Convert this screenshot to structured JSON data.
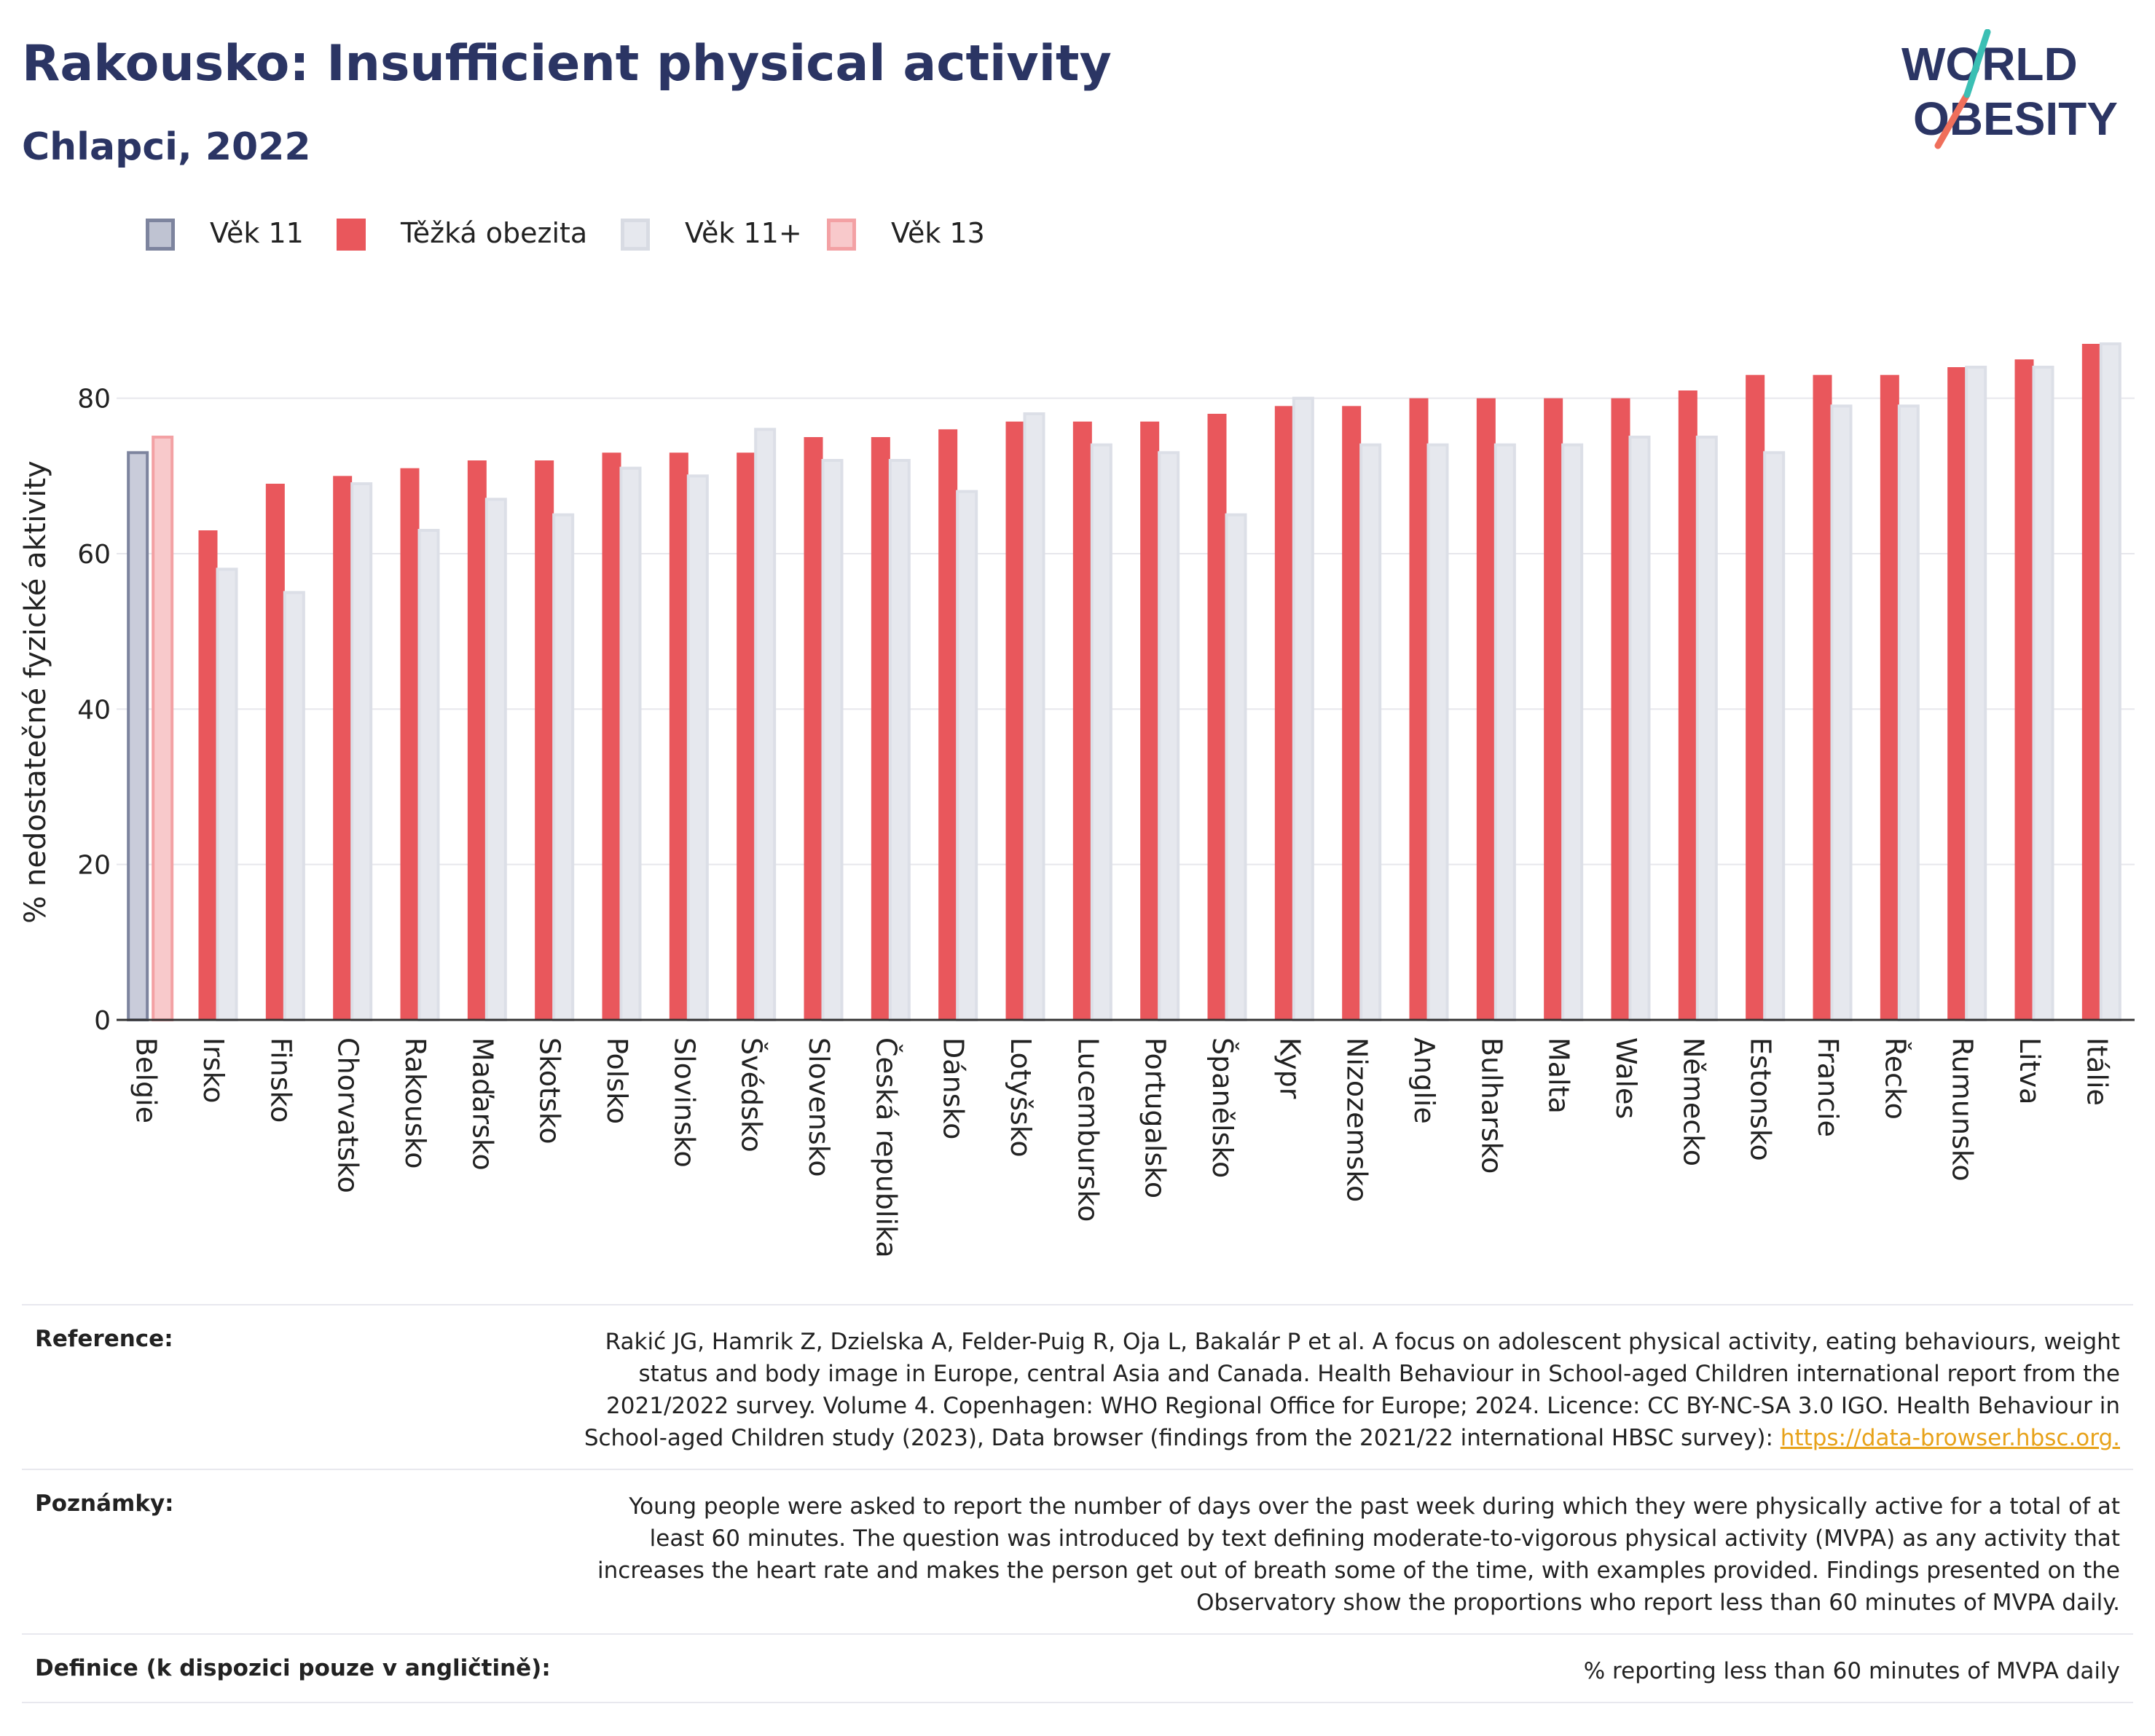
{
  "header": {
    "title": "Rakousko: Insufficient physical activity",
    "subtitle": "Chlapci, 2022"
  },
  "logo": {
    "line1": "WORLD",
    "line2": "OBESITY",
    "accent_colors": [
      "#3bbfb4",
      "#ef6f5b"
    ]
  },
  "legend": [
    {
      "label": "Věk 11",
      "color": "#bfc3d2",
      "border": "#7d849e"
    },
    {
      "label": "Těžká obezita",
      "color": "#e9575c",
      "border": "#e9575c"
    },
    {
      "label": "Věk 11+",
      "color": "#e6e8ee",
      "border": "#d8dbe3"
    },
    {
      "label": "Věk 13",
      "color": "#f8c9cb",
      "border": "#f3a1a4"
    }
  ],
  "colors": {
    "primary_red": "#e9575c",
    "light_grey": "#e6e8ee",
    "grey_blue": "#c9ccda",
    "pink": "#f8c9cb",
    "axis": "#333333",
    "grid": "#e7e7ec"
  },
  "chart_data": {
    "type": "bar",
    "ylabel": "% nedostatečné fyzické aktivity",
    "ylim": [
      0,
      90
    ],
    "yticks": [
      0,
      20,
      40,
      60,
      80
    ],
    "grid": true,
    "categories": [
      "Belgie",
      "Irsko",
      "Finsko",
      "Chorvatsko",
      "Rakousko",
      "Maďarsko",
      "Skotsko",
      "Polsko",
      "Slovinsko",
      "Švédsko",
      "Slovensko",
      "Česká republika",
      "Dánsko",
      "Lotyšsko",
      "Lucembursko",
      "Portugalsko",
      "Španělsko",
      "Kypr",
      "Nizozemsko",
      "Anglie",
      "Bulharsko",
      "Malta",
      "Wales",
      "Německo",
      "Estonsko",
      "Francie",
      "Řecko",
      "Rumunsko",
      "Litva",
      "Itálie"
    ],
    "series": [
      {
        "name": "Těžká obezita",
        "values": [
          null,
          63,
          69,
          70,
          71,
          72,
          72,
          73,
          73,
          73,
          75,
          75,
          76,
          77,
          77,
          77,
          78,
          79,
          79,
          80,
          80,
          80,
          80,
          81,
          83,
          83,
          83,
          84,
          85,
          87
        ]
      },
      {
        "name": "Věk 11+",
        "values": [
          null,
          58,
          55,
          69,
          63,
          67,
          65,
          71,
          70,
          76,
          72,
          72,
          68,
          78,
          74,
          73,
          65,
          80,
          74,
          74,
          74,
          74,
          75,
          75,
          73,
          79,
          79,
          84,
          84,
          87
        ]
      },
      {
        "name": "Věk 11",
        "values": [
          73,
          null,
          null,
          null,
          null,
          null,
          null,
          null,
          null,
          null,
          null,
          null,
          null,
          null,
          null,
          null,
          null,
          null,
          null,
          null,
          null,
          null,
          null,
          null,
          null,
          null,
          null,
          null,
          null,
          null
        ]
      },
      {
        "name": "Věk 13",
        "values": [
          75,
          null,
          null,
          null,
          null,
          null,
          null,
          null,
          null,
          null,
          null,
          null,
          null,
          null,
          null,
          null,
          null,
          null,
          null,
          null,
          null,
          null,
          null,
          null,
          null,
          null,
          null,
          null,
          null,
          null
        ]
      }
    ]
  },
  "references": {
    "reference_label": "Reference:",
    "reference_text": "Rakić JG, Hamrik Z, Dzielska A, Felder-Puig R, Oja L, Bakalár P et al. A focus on adolescent physical activity, eating behaviours, weight status and body image in Europe, central Asia and Canada. Health Behaviour in School-aged Children international report from the 2021/2022 survey. Volume 4. Copenhagen: WHO Regional Office for Europe; 2024. Licence: CC BY-NC-SA 3.0 IGO. Health Behaviour in School-aged Children study (2023), Data browser (findings from the 2021/22 international HBSC survey): ",
    "reference_link": "https://data-browser.hbsc.org.",
    "notes_label": "Poznámky:",
    "notes_text": "Young people were asked to report the number of days over the past week during which they were physically active for a total of at least 60 minutes. The question was introduced by text defining moderate-to-vigorous physical activity (MVPA) as any activity that increases the heart rate and makes the person get out of breath some of the time, with examples provided. Findings presented on the Observatory show the proportions who report less than 60 minutes of MVPA daily.",
    "definition_label": "Definice (k dispozici pouze v angličtině):",
    "definition_text": "% reporting less than 60 minutes of MVPA daily"
  }
}
